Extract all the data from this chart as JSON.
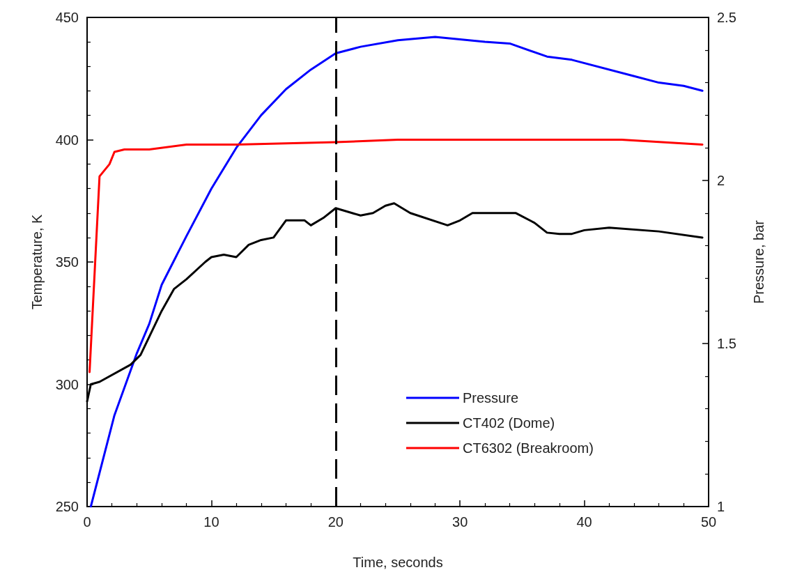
{
  "chart_data": {
    "type": "line",
    "xlabel": "Time, seconds",
    "ylabel": "Temperature, K",
    "y2label": "Pressure, bar",
    "xlim": [
      0,
      50
    ],
    "xticks": [
      0,
      10,
      20,
      30,
      40,
      50
    ],
    "ylim": [
      250,
      450
    ],
    "yticks": [
      250,
      300,
      350,
      400,
      450
    ],
    "y2lim": [
      1,
      2.5
    ],
    "y2ticks": [
      1,
      1.5,
      2,
      2.5
    ],
    "grid": false,
    "legend": "bottom",
    "marker": "none",
    "line_style": "solid",
    "ref_lines": [
      {
        "axis": "x",
        "value": 20,
        "color": "#000000",
        "line_style": "dashed"
      }
    ],
    "series": [
      {
        "name": "Pressure",
        "color": "#0000ff",
        "axis": "y2",
        "x": [
          0.3,
          2.2,
          4,
          5,
          6,
          8,
          10,
          12,
          14,
          16,
          18,
          20,
          22,
          25,
          28,
          32,
          34,
          37,
          39,
          44,
          46,
          48,
          49.5
        ],
        "values": [
          1.0,
          1.28,
          1.47,
          1.56,
          1.68,
          1.83,
          1.975,
          2.1,
          2.2,
          2.28,
          2.34,
          2.39,
          2.41,
          2.43,
          2.44,
          2.425,
          2.42,
          2.38,
          2.37,
          2.32,
          2.3,
          2.29,
          2.275
        ]
      },
      {
        "name": "CT402 (Dome)",
        "color": "#000000",
        "x": [
          0,
          0.3,
          1,
          3.5,
          4.3,
          6,
          7,
          8,
          9.5,
          10,
          11,
          12,
          13,
          14,
          15,
          16,
          17.5,
          18,
          19,
          20,
          22,
          23,
          24,
          24.7,
          26,
          29,
          30,
          31,
          34.5,
          36,
          37,
          38,
          39,
          40,
          42,
          46,
          49.5
        ],
        "values": [
          293,
          300,
          301,
          308,
          312,
          330,
          339,
          343,
          350,
          352,
          353,
          352,
          357,
          359,
          360,
          367,
          367,
          365,
          368,
          372,
          369,
          370,
          373,
          374,
          370,
          365,
          367,
          370,
          370,
          366,
          362,
          361.5,
          361.5,
          363,
          364,
          362.5,
          360
        ]
      },
      {
        "name": "CT6302 (Breakroom)",
        "color": "#ff0000",
        "x": [
          0.2,
          1,
          1.8,
          2.2,
          3,
          5,
          8,
          12,
          20,
          25,
          30,
          43,
          49.5
        ],
        "values": [
          305,
          385,
          390,
          395,
          396,
          396,
          398,
          398,
          399,
          400,
          400,
          400,
          398
        ]
      }
    ]
  }
}
